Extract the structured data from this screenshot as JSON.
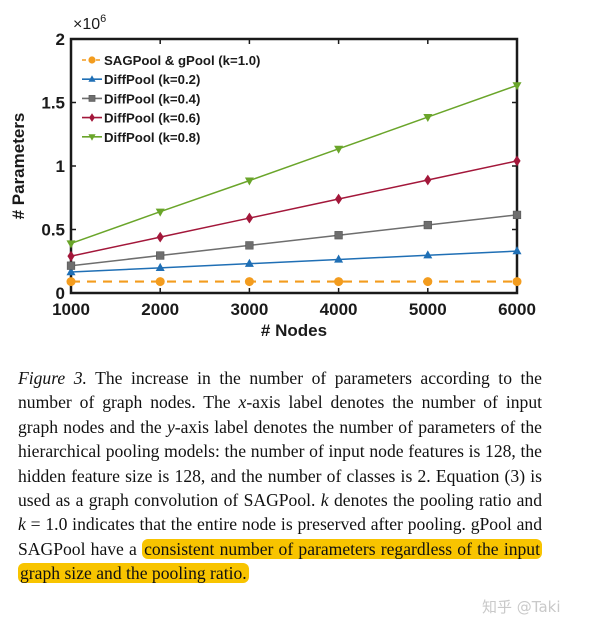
{
  "chart_data": {
    "type": "line",
    "title": "",
    "xlabel": "# Nodes",
    "ylabel": "# Parameters",
    "y_multiplier_label": "×10^6",
    "x": [
      1000,
      2000,
      3000,
      4000,
      5000,
      6000
    ],
    "xticks": [
      "1000",
      "2000",
      "3000",
      "4000",
      "5000",
      "6000"
    ],
    "yticks": [
      "0",
      "0.5",
      "1",
      "1.5",
      "2"
    ],
    "xlim": [
      1000,
      6000
    ],
    "ylim": [
      0,
      2000000
    ],
    "grid": false,
    "legend_position": "upper-left",
    "series": [
      {
        "name": "SAGPool & gPool (k=1.0)",
        "color": "#f39c1e",
        "marker": "circle",
        "linestyle": "dashed",
        "values": [
          90000,
          90000,
          90000,
          90000,
          90000,
          90000
        ]
      },
      {
        "name": "DiffPool (k=0.2)",
        "color": "#1f6fb5",
        "marker": "triangle-up",
        "linestyle": "solid",
        "values": [
          165000,
          198000,
          231000,
          264000,
          297000,
          330000
        ]
      },
      {
        "name": "DiffPool (k=0.4)",
        "color": "#6e6e6e",
        "marker": "square",
        "linestyle": "solid",
        "values": [
          215000,
          295000,
          375000,
          455000,
          535000,
          615000
        ]
      },
      {
        "name": "DiffPool (k=0.6)",
        "color": "#a3173a",
        "marker": "diamond",
        "linestyle": "solid",
        "values": [
          290000,
          440000,
          590000,
          740000,
          890000,
          1040000
        ]
      },
      {
        "name": "DiffPool (k=0.8)",
        "color": "#6aa52a",
        "marker": "triangle-down",
        "linestyle": "solid",
        "values": [
          390000,
          640000,
          885000,
          1135000,
          1385000,
          1635000
        ]
      }
    ]
  },
  "caption": {
    "figure_label": "Figure 3.",
    "part1": " The increase in the number of parameters according to the number of graph nodes. The ",
    "x_var": "x",
    "part2": "-axis label denotes the number of input graph nodes and the ",
    "y_var": "y",
    "part3": "-axis label denotes the number of parameters of the hierarchical pooling models: the number of input node features is 128, the hidden feature size is 128, and the number of classes is 2.  Equation (3) is used as a graph convolution of SAGPool. ",
    "k_var": "k",
    "part4": " denotes the pooling ratio and ",
    "k_eq": "k",
    "part5": " = 1.0 indicates that the entire node is preserved after pooling.  gPool and SAGPool have a ",
    "highlighted": "consistent number of parameters regardless of the input graph size and the pooling ratio.",
    "highlight_color": "#f8c400"
  },
  "watermark": "知乎 @Taki"
}
